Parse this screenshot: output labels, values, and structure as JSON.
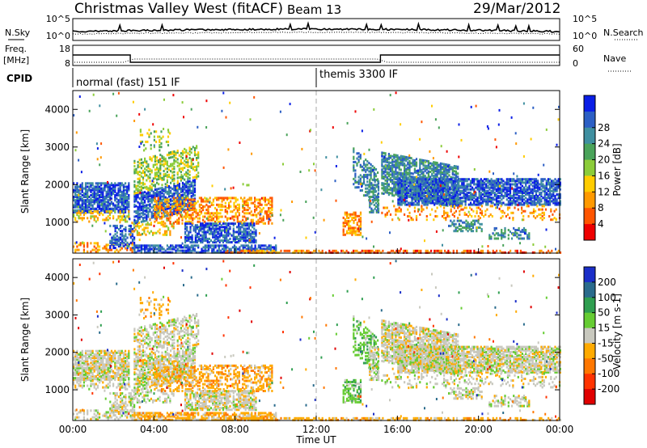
{
  "header": {
    "station": "Christmas Valley West (fitACF)",
    "beam": "Beam 13",
    "date": "29/Mar/2012"
  },
  "labels": {
    "nsky": "N.Sky",
    "nsearch": "N.Search",
    "freq_top": "Freq.",
    "freq_unit": "[MHz]",
    "nave": "Nave",
    "cpid": "CPID"
  },
  "chart_data": [
    {
      "type": "line",
      "name": "noise",
      "left_axis": {
        "ticks": [
          "10^5",
          "10^0"
        ],
        "scale": "log"
      },
      "right_axis": {
        "ticks": [
          "10^5",
          "10^0"
        ],
        "scale": "log"
      },
      "series": [
        {
          "name": "N.Sky",
          "style": "solid"
        },
        {
          "name": "N.Search",
          "style": "dotted"
        }
      ]
    },
    {
      "type": "line",
      "name": "frequency",
      "left_axis": {
        "label": "Freq. [MHz]",
        "ticks": [
          "18",
          "8"
        ]
      },
      "right_axis": {
        "label": "Nave",
        "ticks": [
          "60",
          "0"
        ]
      },
      "series": [
        {
          "name": "Freq.",
          "style": "solid",
          "x": [
            "00:00",
            "02:50",
            "02:50",
            "15:10",
            "15:10",
            "24:00"
          ],
          "y": [
            13.2,
            13.2,
            9.6,
            9.6,
            13.2,
            13.2
          ]
        },
        {
          "name": "Nave",
          "style": "dotted"
        }
      ]
    },
    {
      "type": "table",
      "name": "cpid",
      "segments": [
        {
          "start": "00:00",
          "end": "12:00",
          "label": "normal (fast) 151 IF"
        },
        {
          "start": "12:00",
          "end": "24:00",
          "label": "themis 3300 IF"
        }
      ]
    },
    {
      "type": "heatmap",
      "name": "power",
      "ylabel": "Slant Range [km]",
      "yticks": [
        1000,
        2000,
        3000,
        4000
      ],
      "ylim": [
        180,
        4500
      ],
      "colorbar": {
        "label": "Power [dB]",
        "ticks": [
          4,
          8,
          12,
          16,
          20,
          24,
          28
        ],
        "colors": [
          "#0a1ee6",
          "#2c5fc4",
          "#3f8fa0",
          "#4aa35a",
          "#8ccc3a",
          "#ffcc00",
          "#ff9900",
          "#ff5500",
          "#ee0000"
        ]
      }
    },
    {
      "type": "heatmap",
      "name": "velocity",
      "ylabel": "Slant Range [km]",
      "yticks": [
        1000,
        2000,
        3000,
        4000
      ],
      "ylim": [
        180,
        4500
      ],
      "xlabel": "Time UT",
      "xticks": [
        "00:00",
        "04:00",
        "08:00",
        "12:00",
        "16:00",
        "20:00",
        "00:00"
      ],
      "colorbar": {
        "label": "Velocity [m s-1]",
        "ticks": [
          200,
          100,
          50,
          15,
          -15,
          -50,
          -100,
          -200
        ],
        "colors": [
          "#1a2ec8",
          "#2a6b8c",
          "#2f9e50",
          "#66cc33",
          "#c8c8be",
          "#ffaa00",
          "#ff7700",
          "#ff3300",
          "#e00000"
        ]
      }
    }
  ]
}
